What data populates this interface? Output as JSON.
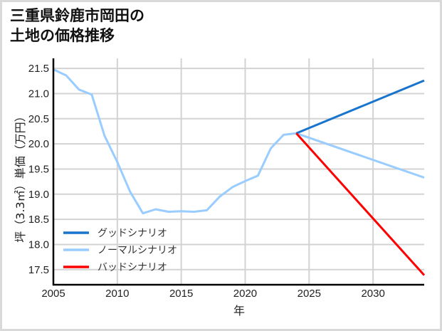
{
  "title_lines": [
    "三重県鈴鹿市岡田の",
    "土地の価格推移"
  ],
  "chart_data": {
    "type": "line",
    "title": "三重県鈴鹿市岡田の土地の価格推移",
    "xlabel": "年",
    "ylabel": "坪（3.3㎡）単価（万円）",
    "xlim": [
      2005,
      2034
    ],
    "ylim": [
      17.2,
      21.7
    ],
    "xticks": [
      2005,
      2010,
      2015,
      2020,
      2025,
      2030
    ],
    "yticks": [
      17.5,
      18.0,
      18.5,
      19.0,
      19.5,
      20.0,
      20.5,
      21.0,
      21.5
    ],
    "grid": true,
    "legend_position": "lower left",
    "series": [
      {
        "name": "グッドシナリオ",
        "color": "#1874cd",
        "x": [
          2024,
          2034
        ],
        "values": [
          20.21,
          21.26
        ]
      },
      {
        "name": "ノーマルシナリオ",
        "color": "#99ccff",
        "x": [
          2005,
          2006,
          2007,
          2008,
          2009,
          2010,
          2011,
          2012,
          2013,
          2014,
          2015,
          2016,
          2017,
          2018,
          2019,
          2020,
          2021,
          2022,
          2023,
          2024,
          2034
        ],
        "values": [
          21.48,
          21.36,
          21.08,
          20.98,
          20.16,
          19.64,
          19.05,
          18.62,
          18.7,
          18.65,
          18.66,
          18.65,
          18.68,
          18.95,
          19.14,
          19.26,
          19.37,
          19.91,
          20.18,
          20.21,
          19.33
        ]
      },
      {
        "name": "バッドシナリオ",
        "color": "#ff0000",
        "x": [
          2024,
          2034
        ],
        "values": [
          20.21,
          17.39
        ]
      }
    ]
  }
}
